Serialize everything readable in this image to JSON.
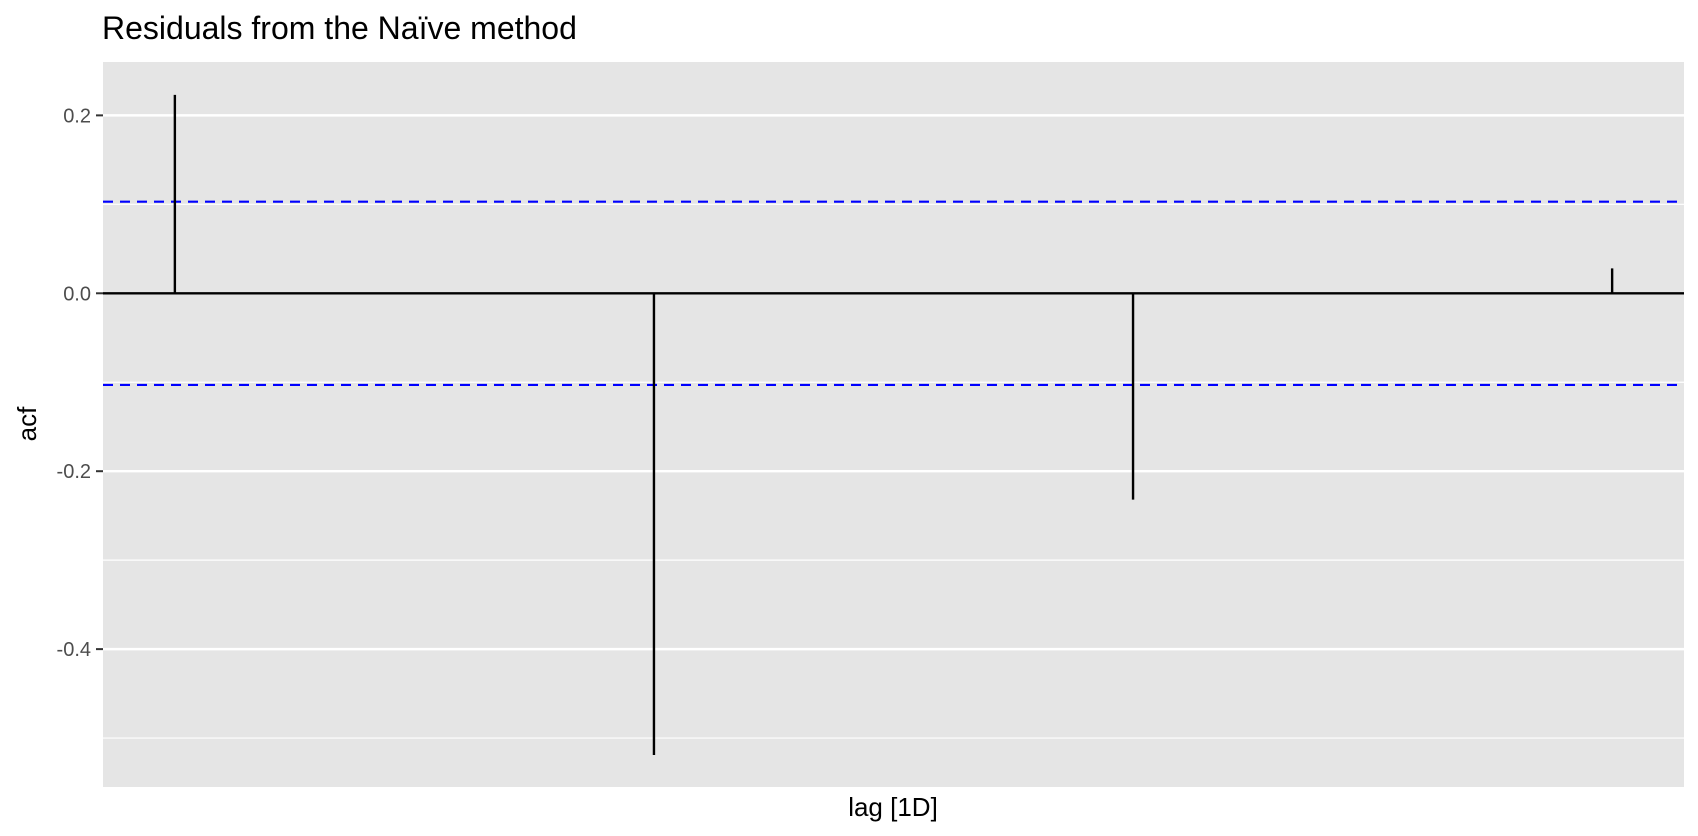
{
  "chart_data": {
    "type": "bar",
    "title": "Residuals from the Naïve method",
    "xlabel": "lag [1D]",
    "ylabel": "acf",
    "x": [
      1,
      2,
      3,
      4
    ],
    "values": [
      0.223,
      -0.519,
      -0.232,
      0.028
    ],
    "ylim": [
      -0.555,
      0.26
    ],
    "xlim": [
      0.85,
      4.15
    ],
    "yticks": [
      0.2,
      0.0,
      -0.2,
      -0.4
    ],
    "ytick_labels": [
      "0.2",
      "0.0",
      "-0.2",
      "-0.4"
    ],
    "y_minor_gridlines": [
      0.1,
      -0.1,
      -0.3,
      -0.5
    ],
    "confidence_bounds": [
      0.103,
      -0.103
    ],
    "show_x_tick_labels": false,
    "grid": true,
    "colors": {
      "panel_background": "#e5e5e5",
      "grid": "#ffffff",
      "bars": "#000000",
      "zero_line": "#000000",
      "confidence_lines": "#0000ff",
      "tick_text": "#4d4d4d",
      "text": "#000000"
    }
  }
}
